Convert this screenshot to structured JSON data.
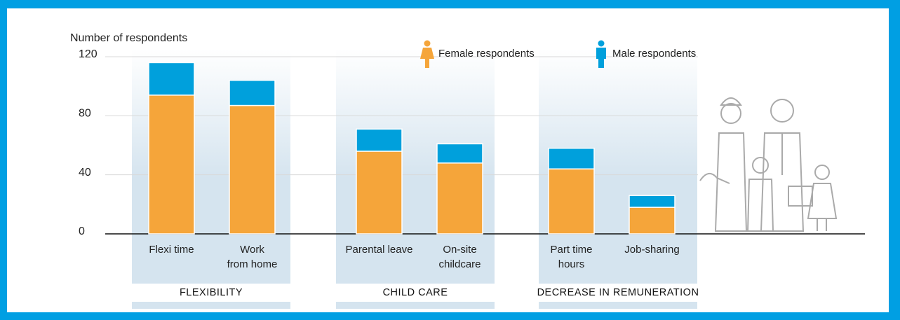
{
  "chart_data": {
    "type": "stacked_bar",
    "y_label": "Number of respondents",
    "categories": [
      "Flexi time",
      "Work\nfrom home",
      "Parental leave",
      "On-site\nchildcare",
      "Part time\nhours",
      "Job-sharing"
    ],
    "groups": [
      {
        "name": "FLEXIBILITY",
        "categories": [
          0,
          1
        ]
      },
      {
        "name": "CHILD CARE",
        "categories": [
          2,
          3
        ]
      },
      {
        "name": "DECREASE IN REMUNERATION",
        "categories": [
          4,
          5
        ]
      }
    ],
    "series": [
      {
        "name": "Female respondents",
        "color": "#f5a53a",
        "values": [
          94,
          87,
          56,
          48,
          44,
          18
        ]
      },
      {
        "name": "Male respondents",
        "color": "#00a0dc",
        "values": [
          22,
          17,
          15,
          13,
          14,
          8
        ]
      }
    ],
    "ylim": [
      0,
      120
    ],
    "yticks": [
      0,
      40,
      80,
      120
    ],
    "grid": true
  }
}
